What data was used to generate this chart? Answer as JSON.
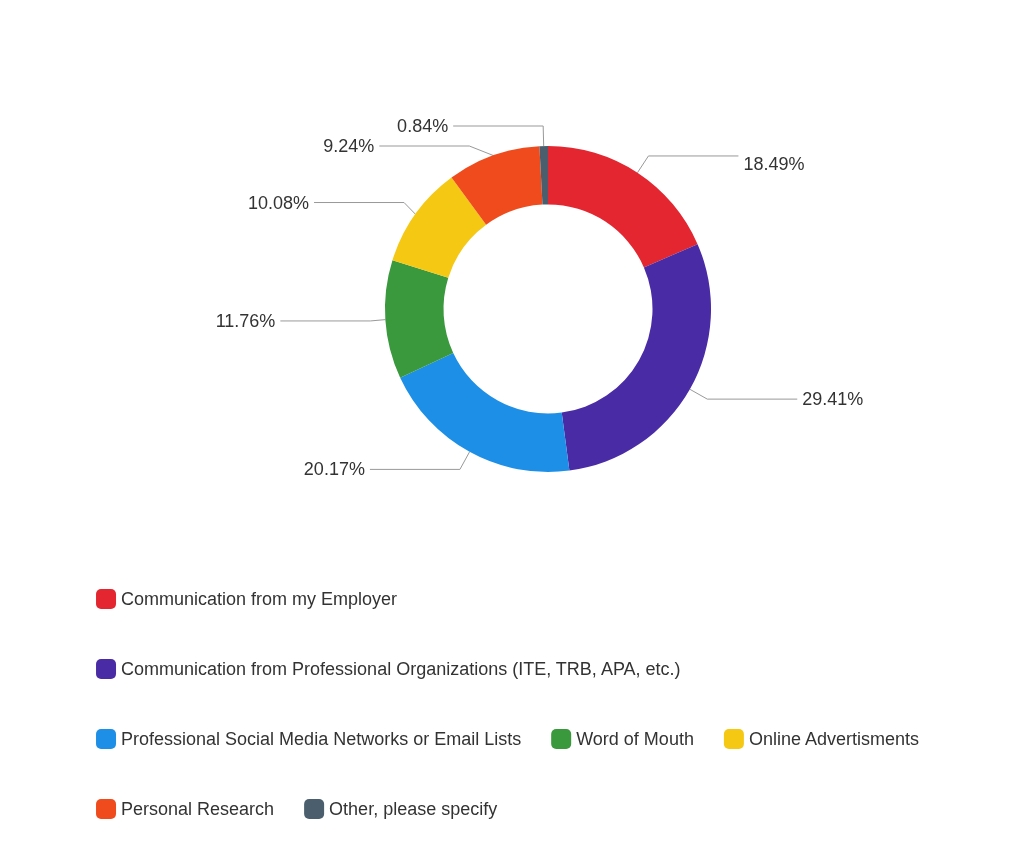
{
  "chart_data": {
    "type": "donut",
    "categories": [
      "Communication from my Employer",
      "Communication from Professional Organizations (ITE, TRB, APA, etc.)",
      "Professional Social Media Networks or Email Lists",
      "Word of Mouth",
      "Online Advertisments",
      "Personal Research",
      "Other, please specify"
    ],
    "values": [
      18.49,
      29.41,
      20.17,
      11.76,
      10.08,
      9.24,
      0.84
    ],
    "colors": [
      "#e3262f",
      "#4a2ba6",
      "#1d8fe6",
      "#3a983d",
      "#f5c813",
      "#f04b1d",
      "#4b5e6e"
    ],
    "value_labels": [
      "18.49%",
      "29.41%",
      "20.17%",
      "11.76%",
      "10.08%",
      "9.24%",
      "0.84%"
    ],
    "legend": "bottom"
  }
}
